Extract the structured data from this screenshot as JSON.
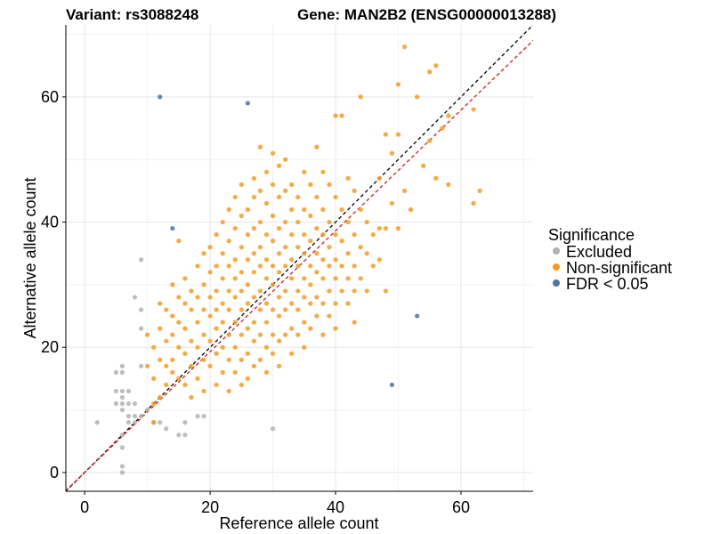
{
  "chart_data": {
    "type": "scatter",
    "title_left": "Variant: rs3088248",
    "title_right": "Gene: MAN2B2 (ENSG00000013288)",
    "xlabel": "Reference allele count",
    "ylabel": "Alternative allele count",
    "xlim": [
      -3,
      71.5
    ],
    "ylim": [
      -3,
      71.5
    ],
    "x_ticks": [
      0,
      20,
      40,
      60
    ],
    "y_ticks": [
      0,
      20,
      40,
      60
    ],
    "grid": true,
    "legend": {
      "title": "Significance",
      "placement": "right",
      "entries": [
        {
          "name": "Excluded",
          "color": "#b3b3b3"
        },
        {
          "name": "Non-significant",
          "color": "#f99a1c"
        },
        {
          "name": "FDR < 0.05",
          "color": "#4a76a2"
        }
      ]
    },
    "reference_lines": [
      {
        "kind": "identity",
        "slope": 1,
        "intercept": 0,
        "color": "#000000",
        "style": "dashed"
      },
      {
        "kind": "fit",
        "slope": 0.965,
        "intercept": 0,
        "color": "#e41a1c",
        "style": "dashed"
      }
    ],
    "series": [
      {
        "name": "Excluded",
        "color": "#b3b3b3",
        "points": [
          [
            2,
            8
          ],
          [
            5,
            13
          ],
          [
            5,
            16
          ],
          [
            5,
            11
          ],
          [
            6,
            16
          ],
          [
            6,
            17
          ],
          [
            6,
            13
          ],
          [
            6,
            12
          ],
          [
            6,
            11
          ],
          [
            6,
            10
          ],
          [
            6,
            6
          ],
          [
            6,
            4
          ],
          [
            6,
            1
          ],
          [
            6,
            0
          ],
          [
            7,
            13
          ],
          [
            7,
            11
          ],
          [
            7,
            9
          ],
          [
            7,
            8
          ],
          [
            8,
            28
          ],
          [
            8,
            11
          ],
          [
            8,
            9
          ],
          [
            8,
            8
          ],
          [
            9,
            34
          ],
          [
            9,
            26
          ],
          [
            9,
            23
          ],
          [
            9,
            17
          ],
          [
            9,
            9
          ],
          [
            10,
            10
          ],
          [
            11,
            8
          ],
          [
            12,
            8
          ],
          [
            13,
            7
          ],
          [
            15,
            6
          ],
          [
            16,
            8
          ],
          [
            16,
            6
          ],
          [
            18,
            9
          ],
          [
            19,
            9
          ],
          [
            30,
            7
          ]
        ]
      },
      {
        "name": "Non-significant",
        "color": "#f99a1c",
        "points": [
          [
            10,
            22
          ],
          [
            10,
            17
          ],
          [
            11,
            20
          ],
          [
            11,
            15
          ],
          [
            11,
            11
          ],
          [
            11,
            8
          ],
          [
            12,
            27
          ],
          [
            12,
            23
          ],
          [
            12,
            18
          ],
          [
            12,
            12
          ],
          [
            13,
            26
          ],
          [
            13,
            21
          ],
          [
            13,
            17
          ],
          [
            13,
            14
          ],
          [
            14,
            30
          ],
          [
            14,
            25
          ],
          [
            14,
            22
          ],
          [
            14,
            18
          ],
          [
            14,
            16
          ],
          [
            15,
            37
          ],
          [
            15,
            28
          ],
          [
            15,
            24
          ],
          [
            15,
            20
          ],
          [
            15,
            15
          ],
          [
            16,
            31
          ],
          [
            16,
            27
          ],
          [
            16,
            23
          ],
          [
            16,
            19
          ],
          [
            16,
            14
          ],
          [
            17,
            29
          ],
          [
            17,
            26
          ],
          [
            17,
            21
          ],
          [
            17,
            17
          ],
          [
            17,
            12
          ],
          [
            18,
            33
          ],
          [
            18,
            28
          ],
          [
            18,
            24
          ],
          [
            18,
            20
          ],
          [
            18,
            15
          ],
          [
            19,
            35
          ],
          [
            19,
            30
          ],
          [
            19,
            26
          ],
          [
            19,
            22
          ],
          [
            19,
            18
          ],
          [
            19,
            13
          ],
          [
            20,
            36
          ],
          [
            20,
            32
          ],
          [
            20,
            28
          ],
          [
            20,
            25
          ],
          [
            20,
            21
          ],
          [
            20,
            17
          ],
          [
            21,
            38
          ],
          [
            21,
            33
          ],
          [
            21,
            29
          ],
          [
            21,
            26
          ],
          [
            21,
            23
          ],
          [
            21,
            19
          ],
          [
            21,
            14
          ],
          [
            22,
            40
          ],
          [
            22,
            35
          ],
          [
            22,
            31
          ],
          [
            22,
            27
          ],
          [
            22,
            24
          ],
          [
            22,
            20
          ],
          [
            22,
            16
          ],
          [
            23,
            42
          ],
          [
            23,
            37
          ],
          [
            23,
            33
          ],
          [
            23,
            29
          ],
          [
            23,
            26
          ],
          [
            23,
            22
          ],
          [
            23,
            18
          ],
          [
            23,
            13
          ],
          [
            24,
            44
          ],
          [
            24,
            39
          ],
          [
            24,
            34
          ],
          [
            24,
            31
          ],
          [
            24,
            28
          ],
          [
            24,
            24
          ],
          [
            24,
            20
          ],
          [
            24,
            16
          ],
          [
            25,
            46
          ],
          [
            25,
            41
          ],
          [
            25,
            36
          ],
          [
            25,
            32
          ],
          [
            25,
            29
          ],
          [
            25,
            26
          ],
          [
            25,
            22
          ],
          [
            25,
            18
          ],
          [
            25,
            14
          ],
          [
            26,
            42
          ],
          [
            26,
            38
          ],
          [
            26,
            34
          ],
          [
            26,
            30
          ],
          [
            26,
            27
          ],
          [
            26,
            23
          ],
          [
            26,
            19
          ],
          [
            26,
            15
          ],
          [
            27,
            47
          ],
          [
            27,
            44
          ],
          [
            27,
            39
          ],
          [
            27,
            35
          ],
          [
            27,
            32
          ],
          [
            27,
            28
          ],
          [
            27,
            24
          ],
          [
            27,
            21
          ],
          [
            27,
            17
          ],
          [
            28,
            52
          ],
          [
            28,
            45
          ],
          [
            28,
            40
          ],
          [
            28,
            36
          ],
          [
            28,
            33
          ],
          [
            28,
            29
          ],
          [
            28,
            26
          ],
          [
            28,
            22
          ],
          [
            28,
            18
          ],
          [
            29,
            48
          ],
          [
            29,
            43
          ],
          [
            29,
            38
          ],
          [
            29,
            34
          ],
          [
            29,
            31
          ],
          [
            29,
            27
          ],
          [
            29,
            24
          ],
          [
            29,
            20
          ],
          [
            29,
            16
          ],
          [
            30,
            51
          ],
          [
            30,
            46
          ],
          [
            30,
            41
          ],
          [
            30,
            37
          ],
          [
            30,
            33
          ],
          [
            30,
            30
          ],
          [
            30,
            26
          ],
          [
            30,
            22
          ],
          [
            30,
            19
          ],
          [
            31,
            49
          ],
          [
            31,
            44
          ],
          [
            31,
            39
          ],
          [
            31,
            35
          ],
          [
            31,
            32
          ],
          [
            31,
            28
          ],
          [
            31,
            25
          ],
          [
            31,
            21
          ],
          [
            31,
            17
          ],
          [
            32,
            50
          ],
          [
            32,
            45
          ],
          [
            32,
            40
          ],
          [
            32,
            36
          ],
          [
            32,
            33
          ],
          [
            32,
            29
          ],
          [
            32,
            26
          ],
          [
            32,
            22
          ],
          [
            33,
            46
          ],
          [
            33,
            42
          ],
          [
            33,
            38
          ],
          [
            33,
            34
          ],
          [
            33,
            31
          ],
          [
            33,
            27
          ],
          [
            33,
            23
          ],
          [
            33,
            19
          ],
          [
            34,
            44
          ],
          [
            34,
            40
          ],
          [
            34,
            36
          ],
          [
            34,
            33
          ],
          [
            34,
            29
          ],
          [
            34,
            26
          ],
          [
            34,
            22
          ],
          [
            35,
            48
          ],
          [
            35,
            42
          ],
          [
            35,
            38
          ],
          [
            35,
            35
          ],
          [
            35,
            31
          ],
          [
            35,
            28
          ],
          [
            35,
            24
          ],
          [
            35,
            20
          ],
          [
            36,
            46
          ],
          [
            36,
            41
          ],
          [
            36,
            37
          ],
          [
            36,
            33
          ],
          [
            36,
            30
          ],
          [
            36,
            27
          ],
          [
            36,
            23
          ],
          [
            37,
            52
          ],
          [
            37,
            44
          ],
          [
            37,
            39
          ],
          [
            37,
            35
          ],
          [
            37,
            32
          ],
          [
            37,
            28
          ],
          [
            37,
            25
          ],
          [
            38,
            48
          ],
          [
            38,
            42
          ],
          [
            38,
            38
          ],
          [
            38,
            34
          ],
          [
            38,
            31
          ],
          [
            38,
            27
          ],
          [
            38,
            22
          ],
          [
            39,
            46
          ],
          [
            39,
            40
          ],
          [
            39,
            36
          ],
          [
            39,
            33
          ],
          [
            39,
            29
          ],
          [
            39,
            25
          ],
          [
            40,
            57
          ],
          [
            40,
            44
          ],
          [
            40,
            38
          ],
          [
            40,
            34
          ],
          [
            40,
            31
          ],
          [
            40,
            27
          ],
          [
            40,
            23
          ],
          [
            41,
            57
          ],
          [
            41,
            42
          ],
          [
            41,
            37
          ],
          [
            41,
            33
          ],
          [
            41,
            29
          ],
          [
            42,
            47
          ],
          [
            42,
            40
          ],
          [
            42,
            35
          ],
          [
            42,
            31
          ],
          [
            42,
            27
          ],
          [
            43,
            45
          ],
          [
            43,
            38
          ],
          [
            43,
            33
          ],
          [
            43,
            29
          ],
          [
            43,
            24
          ],
          [
            44,
            60
          ],
          [
            44,
            42
          ],
          [
            44,
            36
          ],
          [
            44,
            31
          ],
          [
            45,
            40
          ],
          [
            45,
            35
          ],
          [
            45,
            29
          ],
          [
            46,
            38
          ],
          [
            46,
            33
          ],
          [
            47,
            47
          ],
          [
            47,
            39
          ],
          [
            47,
            34
          ],
          [
            48,
            54
          ],
          [
            48,
            39
          ],
          [
            48,
            29
          ],
          [
            49,
            51
          ],
          [
            49,
            43
          ],
          [
            50,
            62
          ],
          [
            50,
            54
          ],
          [
            50,
            39
          ],
          [
            51,
            68
          ],
          [
            51,
            45
          ],
          [
            52,
            42
          ],
          [
            53,
            60
          ],
          [
            54,
            49
          ],
          [
            55,
            64
          ],
          [
            55,
            53
          ],
          [
            56,
            65
          ],
          [
            56,
            47
          ],
          [
            57,
            55
          ],
          [
            58,
            46
          ],
          [
            58,
            57
          ],
          [
            62,
            58
          ],
          [
            62,
            43
          ],
          [
            63,
            45
          ]
        ]
      },
      {
        "name": "FDR < 0.05",
        "color": "#4a76a2",
        "points": [
          [
            12,
            60
          ],
          [
            14,
            39
          ],
          [
            26,
            59
          ],
          [
            49,
            14
          ],
          [
            53,
            25
          ]
        ]
      }
    ]
  }
}
